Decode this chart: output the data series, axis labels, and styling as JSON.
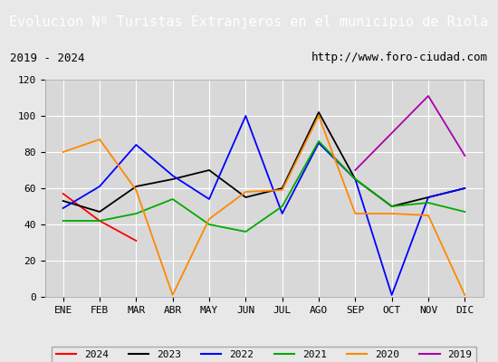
{
  "title": "Evolucion Nº Turistas Extranjeros en el municipio de Riola",
  "subtitle_left": "2019 - 2024",
  "subtitle_right": "http://www.foro-ciudad.com",
  "months": [
    "ENE",
    "FEB",
    "MAR",
    "ABR",
    "MAY",
    "JUN",
    "JUL",
    "AGO",
    "SEP",
    "OCT",
    "NOV",
    "DIC"
  ],
  "series": {
    "2024": {
      "color": "#ff0000",
      "values": [
        57,
        42,
        31,
        null,
        null,
        null,
        null,
        null,
        null,
        null,
        null,
        null
      ]
    },
    "2023": {
      "color": "#000000",
      "values": [
        53,
        47,
        61,
        65,
        70,
        55,
        60,
        102,
        65,
        50,
        55,
        60
      ]
    },
    "2022": {
      "color": "#0000ff",
      "values": [
        49,
        61,
        84,
        67,
        54,
        100,
        46,
        85,
        65,
        1,
        55,
        60
      ]
    },
    "2021": {
      "color": "#00aa00",
      "values": [
        42,
        42,
        46,
        54,
        40,
        36,
        50,
        86,
        65,
        50,
        52,
        47
      ]
    },
    "2020": {
      "color": "#ff8800",
      "values": [
        80,
        87,
        59,
        1,
        43,
        58,
        59,
        100,
        46,
        46,
        45,
        1
      ]
    },
    "2019": {
      "color": "#aa00aa",
      "values": [
        null,
        null,
        null,
        null,
        null,
        null,
        null,
        null,
        70,
        null,
        111,
        78
      ]
    }
  },
  "series_order": [
    "2024",
    "2023",
    "2022",
    "2021",
    "2020",
    "2019"
  ],
  "ylim": [
    0,
    120
  ],
  "yticks": [
    0,
    20,
    40,
    60,
    80,
    100,
    120
  ],
  "background_color": "#e8e8e8",
  "title_bg_color": "#4a90d9",
  "title_color": "#ffffff",
  "subtitle_bg_color": "#cccccc",
  "grid_color": "#ffffff",
  "plot_bg_color": "#d8d8d8",
  "title_fontsize": 11,
  "subtitle_fontsize": 9,
  "tick_fontsize": 8,
  "legend_fontsize": 8,
  "linewidth": 1.3
}
